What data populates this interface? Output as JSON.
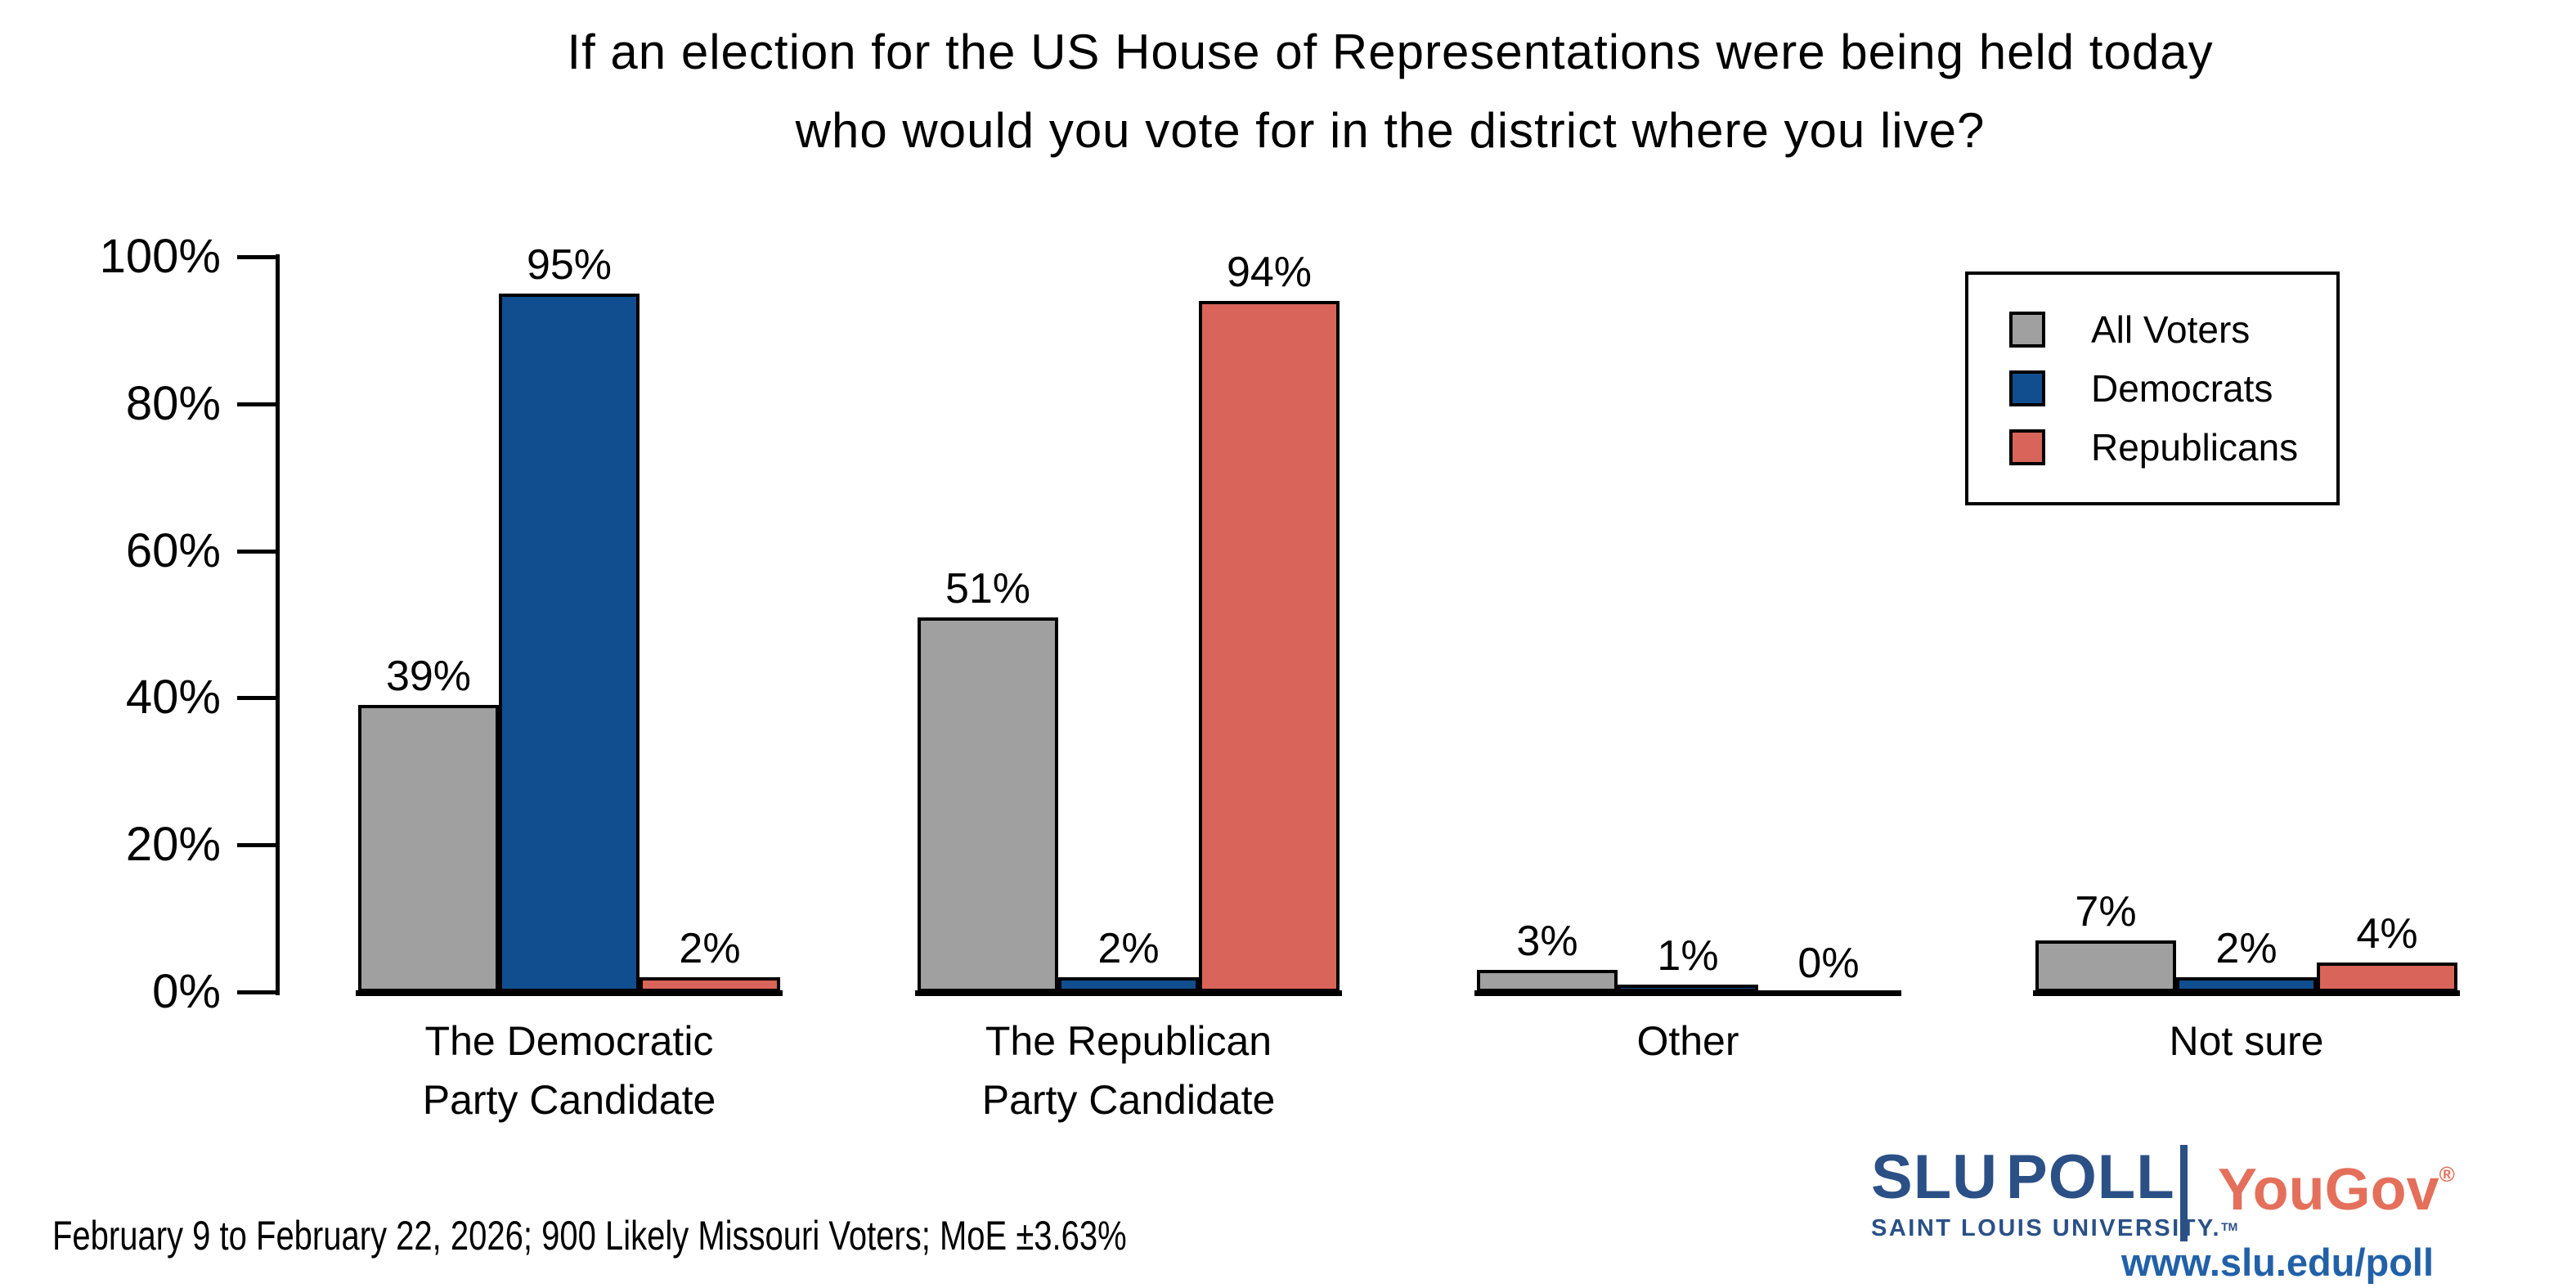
{
  "title": {
    "line1": "If an election for the US House of Representations were being held today",
    "line2": "who would you vote for in the district where you live?"
  },
  "chart_data": {
    "type": "bar",
    "categories": [
      {
        "lines": [
          "The Democratic",
          "Party Candidate"
        ]
      },
      {
        "lines": [
          "The Republican",
          "Party Candidate"
        ]
      },
      {
        "lines": [
          "Other"
        ]
      },
      {
        "lines": [
          "Not sure"
        ]
      }
    ],
    "series": [
      {
        "name": "All Voters",
        "color": "#a0a0a0",
        "values": [
          39,
          51,
          3,
          7
        ]
      },
      {
        "name": "Democrats",
        "color": "#114e8f",
        "values": [
          95,
          2,
          1,
          2
        ]
      },
      {
        "name": "Republicans",
        "color": "#d96459",
        "values": [
          2,
          94,
          0,
          4
        ]
      }
    ],
    "y_ticks": [
      "0%",
      "20%",
      "40%",
      "60%",
      "80%",
      "100%"
    ],
    "ylim": [
      0,
      100
    ],
    "value_suffix": "%",
    "legend_position": "upper right",
    "grid": false,
    "axis_color": "#000000"
  },
  "footer": {
    "note": "February 9 to February 22, 2026; 900 Likely Missouri Voters; MoE ±3.63%"
  },
  "branding": {
    "slu_bold": "SLU",
    "slu_poll": "POLL",
    "slu_sub": "SAINT LOUIS UNIVERSITY.",
    "slu_tm": "TM",
    "yougov": "YouGov",
    "yougov_reg": "®",
    "url": "www.slu.edu/poll",
    "navy": "#2b5086",
    "coral": "#e4705c",
    "link_blue": "#2261a8"
  }
}
